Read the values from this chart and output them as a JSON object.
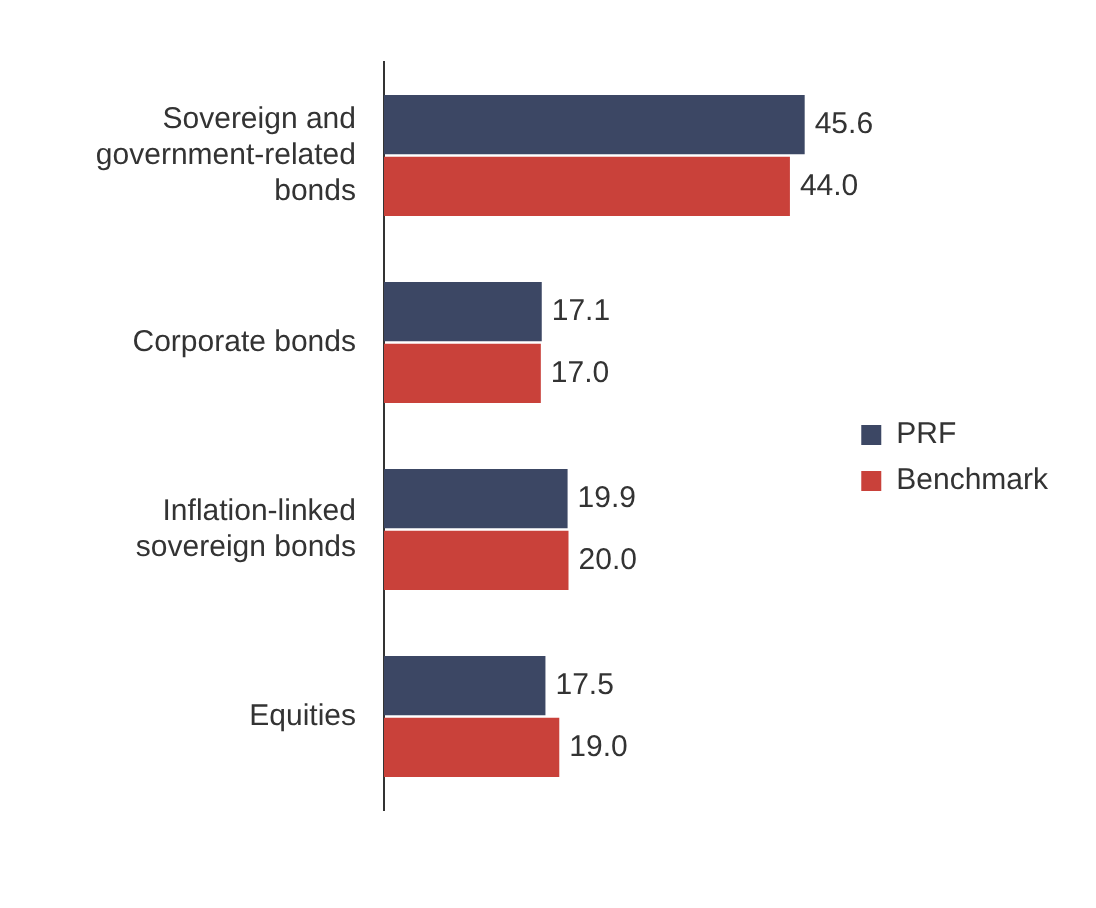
{
  "chart_data": {
    "type": "bar",
    "orientation": "horizontal",
    "categories": [
      "Sovereign and government-related bonds",
      "Corporate bonds",
      "Inflation-linked sovereign bonds",
      "Equities"
    ],
    "series": [
      {
        "name": "PRF",
        "color": "#3c4764",
        "values": [
          45.6,
          17.1,
          19.9,
          17.5
        ],
        "value_labels": [
          "45.6",
          "17.1",
          "19.9",
          "17.5"
        ]
      },
      {
        "name": "Benchmark",
        "color": "#c9413a",
        "values": [
          44.0,
          17.0,
          20.0,
          19.0
        ],
        "value_labels": [
          "44.0",
          "17.0",
          "20.0",
          "19.0"
        ]
      }
    ],
    "grid": false,
    "legend": "right",
    "tick_labels": "y"
  }
}
